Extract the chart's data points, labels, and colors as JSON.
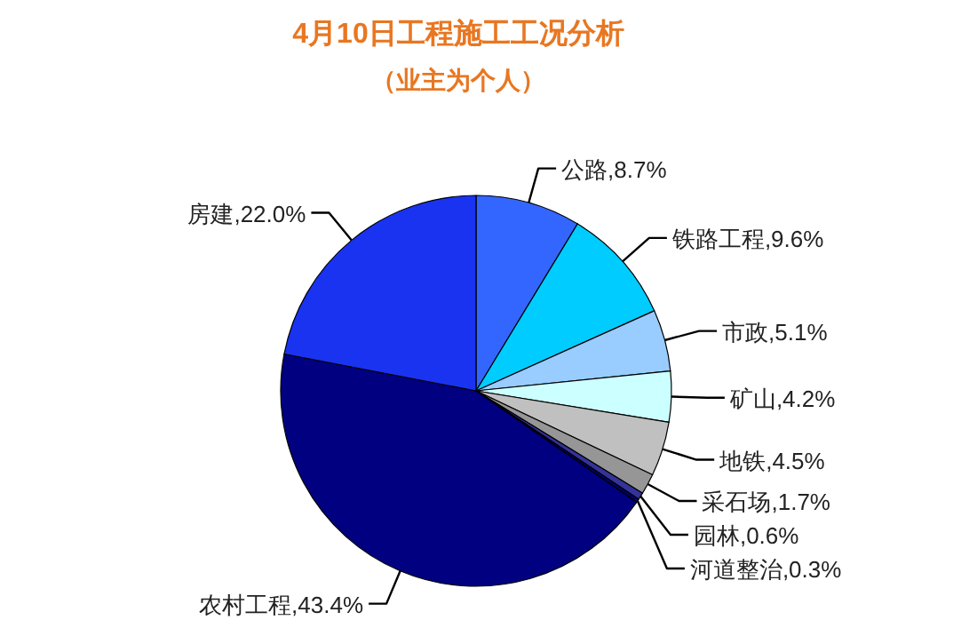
{
  "chart_data": {
    "type": "pie",
    "title": "4月10日工程施工工况分析",
    "subtitle": "（业主为个人）",
    "categories": [
      "公路",
      "铁路工程",
      "市政",
      "矿山",
      "地铁",
      "采石场",
      "园林",
      "河道整治",
      "农村工程",
      "房建"
    ],
    "values": [
      8.7,
      9.6,
      5.1,
      4.2,
      4.5,
      1.7,
      0.6,
      0.3,
      43.4,
      22.0
    ],
    "value_labels": [
      "8.7%",
      "9.6%",
      "5.1%",
      "4.2%",
      "4.5%",
      "1.7%",
      "0.6%",
      "0.3%",
      "43.4%",
      "22.0%"
    ],
    "colors": [
      "#3366ff",
      "#00ccff",
      "#99ccff",
      "#ccffff",
      "#c0c0c0",
      "#969696",
      "#333399",
      "#000066",
      "#000080",
      "#1a33f0"
    ],
    "legend": false
  }
}
